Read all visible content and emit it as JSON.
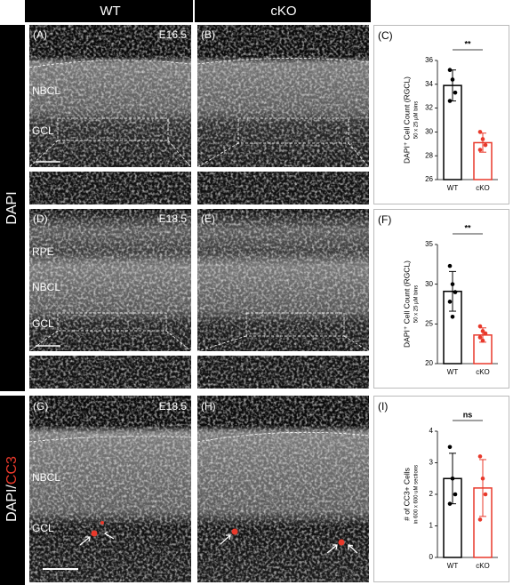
{
  "figure": {
    "header": {
      "wt": "WT",
      "cko": "cKO"
    },
    "side": {
      "dapi": "DAPI",
      "dapi_prefix": "DAPI/",
      "cc3": "CC3"
    },
    "panels": [
      {
        "label": "(A)",
        "stage": "E16.5",
        "layers": [
          "NBCL",
          "GCL"
        ]
      },
      {
        "label": "(B)"
      },
      {
        "label": "(D)",
        "stage": "E18.5",
        "layers": [
          "RPE",
          "NBCL",
          "GCL"
        ]
      },
      {
        "label": "(E)"
      },
      {
        "label": "(G)",
        "stage": "E18.5",
        "layers": [
          "NBCL",
          "GCL"
        ]
      },
      {
        "label": "(H)"
      }
    ]
  },
  "chart_data": [
    {
      "type": "bar",
      "panel_label": "(C)",
      "ylabel": "DAPI⁺ Cell Count (RGCL)",
      "ylabel_sub": "50 x 25 µM bins",
      "categories": [
        "WT",
        "cKO"
      ],
      "values": [
        33.9,
        29.1
      ],
      "errors": [
        1.3,
        0.8
      ],
      "points": [
        [
          35.2,
          34.4,
          33.3,
          32.6
        ],
        [
          30.0,
          29.4,
          28.9,
          28.5
        ]
      ],
      "colors": [
        "#000000",
        "#e8392b"
      ],
      "significance": "**",
      "ylim": [
        26,
        36
      ],
      "yticks": [
        26,
        28,
        30,
        32,
        34,
        36
      ]
    },
    {
      "type": "bar",
      "panel_label": "(F)",
      "ylabel": "DAPI⁺ Cell Count (RGCL)",
      "ylabel_sub": "50 x 25 µM bins",
      "categories": [
        "WT",
        "cKO"
      ],
      "values": [
        29.1,
        23.6
      ],
      "errors": [
        2.5,
        0.9
      ],
      "points": [
        [
          32.3,
          30.0,
          29.0,
          27.8,
          25.9
        ],
        [
          24.7,
          24.1,
          23.8,
          23.3,
          22.9
        ]
      ],
      "colors": [
        "#000000",
        "#e8392b"
      ],
      "significance": "**",
      "ylim": [
        20,
        35
      ],
      "yticks": [
        20,
        25,
        30,
        35
      ]
    },
    {
      "type": "bar",
      "panel_label": "(I)",
      "ylabel": "# of CC3+ Cells",
      "ylabel_sub": "in 600 x 600 uM sections",
      "categories": [
        "WT",
        "cKO"
      ],
      "values": [
        2.5,
        2.2
      ],
      "errors": [
        0.8,
        0.9
      ],
      "points": [
        [
          3.5,
          2.5,
          2.0,
          1.7
        ],
        [
          3.2,
          2.5,
          2.0,
          1.2
        ]
      ],
      "colors": [
        "#000000",
        "#e8392b"
      ],
      "significance": "ns",
      "ylim": [
        0,
        4
      ],
      "yticks": [
        0,
        1,
        2,
        3,
        4
      ]
    }
  ]
}
